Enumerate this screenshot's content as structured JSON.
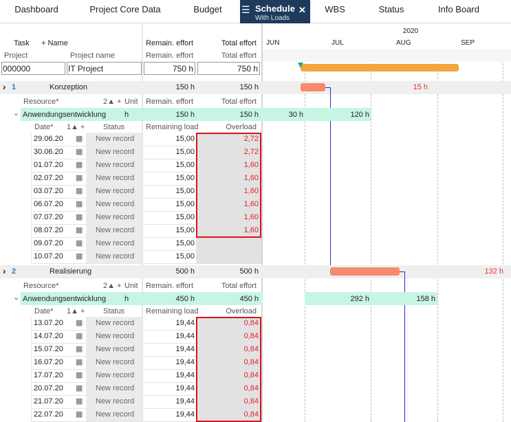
{
  "tabs": [
    {
      "label": "Dashboard"
    },
    {
      "label": "Project Core Data"
    },
    {
      "label": "Budget"
    },
    {
      "label": "Schedule",
      "sublabel": "With Loads"
    },
    {
      "label": "WBS"
    },
    {
      "label": "Status"
    },
    {
      "label": "Info Board"
    }
  ],
  "header": {
    "task": "Task",
    "name": "+ Name",
    "remain": "Remain. effort",
    "total": "Total effort",
    "year": "2020",
    "months": [
      "JUN",
      "JUL",
      "AUG",
      "SEP"
    ]
  },
  "subheader": {
    "project": "Project",
    "project_name": "Project name",
    "remain": "Remain. effort",
    "total": "Total effort"
  },
  "project": {
    "id": "000000",
    "name": "IT Project",
    "remain": "750 h",
    "total": "750 h"
  },
  "sections": [
    {
      "number": "1",
      "name": "Konzeption",
      "remain": "150 h",
      "total": "150 h",
      "gantt_label": "15 h",
      "resource_header": {
        "resource": "Resource*",
        "sort": "2▲ +",
        "unit": "Unit",
        "remain": "Remain. effort",
        "total": "Total effort"
      },
      "resource": {
        "name": "Anwendungsentwicklung",
        "unit": "h",
        "remain": "150 h",
        "total": "150 h",
        "loads": [
          "30 h",
          "120 h"
        ]
      },
      "date_header": {
        "date": "Date*",
        "sort": "1▲ +",
        "status": "Status",
        "load": "Remaining load",
        "overload": "Overload"
      },
      "rows": [
        {
          "date": "29.06.20",
          "status": "New record",
          "load": "15,00",
          "overload": "2,72"
        },
        {
          "date": "30.06.20",
          "status": "New record",
          "load": "15,00",
          "overload": "2,72"
        },
        {
          "date": "01.07.20",
          "status": "New record",
          "load": "15,00",
          "overload": "1,60"
        },
        {
          "date": "02.07.20",
          "status": "New record",
          "load": "15,00",
          "overload": "1,60"
        },
        {
          "date": "03.07.20",
          "status": "New record",
          "load": "15,00",
          "overload": "1,60"
        },
        {
          "date": "06.07.20",
          "status": "New record",
          "load": "15,00",
          "overload": "1,60"
        },
        {
          "date": "07.07.20",
          "status": "New record",
          "load": "15,00",
          "overload": "1,60"
        },
        {
          "date": "08.07.20",
          "status": "New record",
          "load": "15,00",
          "overload": "1,60"
        },
        {
          "date": "09.07.20",
          "status": "New record",
          "load": "15,00"
        },
        {
          "date": "10.07.20",
          "status": "New record",
          "load": "15,00"
        }
      ]
    },
    {
      "number": "2",
      "name": "Realisierung",
      "remain": "500 h",
      "total": "500 h",
      "gantt_label": "132 h",
      "resource_header": {
        "resource": "Resource*",
        "sort": "2▲ +",
        "unit": "Unit",
        "remain": "Remain. effort",
        "total": "Total effort"
      },
      "resource": {
        "name": "Anwendungsentwicklung",
        "unit": "h",
        "remain": "450 h",
        "total": "450 h",
        "loads": [
          "292 h",
          "158 h"
        ]
      },
      "date_header": {
        "date": "Date*",
        "sort": "1▲ +",
        "status": "Status",
        "load": "Remaining load",
        "overload": "Overload"
      },
      "rows": [
        {
          "date": "13.07.20",
          "status": "New record",
          "load": "19,44",
          "overload": "0,84"
        },
        {
          "date": "14.07.20",
          "status": "New record",
          "load": "19,44",
          "overload": "0,84"
        },
        {
          "date": "15.07.20",
          "status": "New record",
          "load": "19,44",
          "overload": "0,84"
        },
        {
          "date": "16.07.20",
          "status": "New record",
          "load": "19,44",
          "overload": "0,84"
        },
        {
          "date": "17.07.20",
          "status": "New record",
          "load": "19,44",
          "overload": "0,84"
        },
        {
          "date": "20.07.20",
          "status": "New record",
          "load": "19,44",
          "overload": "0,84"
        },
        {
          "date": "21.07.20",
          "status": "New record",
          "load": "19,44",
          "overload": "0,84"
        },
        {
          "date": "22.07.20",
          "status": "New record",
          "load": "19,44",
          "overload": "0,84"
        }
      ]
    }
  ]
}
